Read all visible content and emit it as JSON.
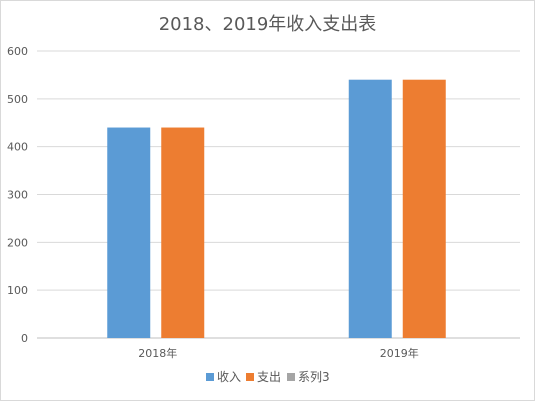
{
  "chart_data": {
    "type": "bar",
    "title": "2018、2019年收入支出表",
    "categories": [
      "2018年",
      "2019年"
    ],
    "series": [
      {
        "name": "收入",
        "values": [
          440,
          540
        ],
        "color": "#5b9bd5"
      },
      {
        "name": "支出",
        "values": [
          440,
          540
        ],
        "color": "#ed7d31"
      },
      {
        "name": "系列3",
        "values": [
          null,
          null
        ],
        "color": "#a5a5a5"
      }
    ],
    "ylim": [
      0,
      600
    ],
    "yticks": [
      0,
      100,
      200,
      300,
      400,
      500,
      600
    ],
    "grid": true,
    "legend": "bottom"
  }
}
